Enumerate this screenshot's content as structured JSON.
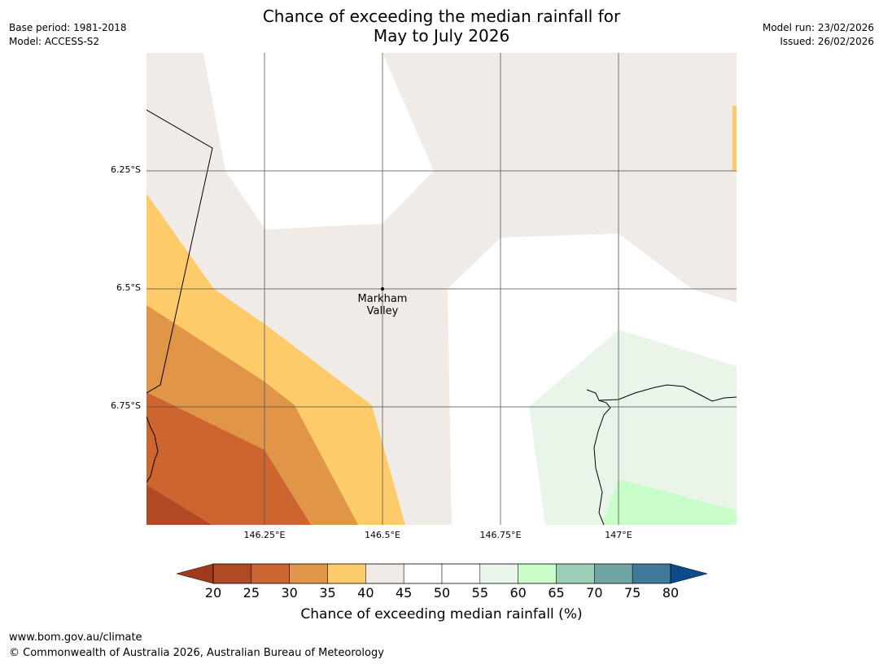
{
  "header": {
    "title_line1": "Chance of exceeding the median rainfall for",
    "title_line2": "May to July 2026",
    "base_period": "Base period: 1981-2018",
    "model": "Model: ACCESS-S2",
    "model_run": "Model run: 23/02/2026",
    "issued": "Issued: 26/02/2026"
  },
  "map": {
    "lat_labels": [
      "6.25°S",
      "6.5°S",
      "6.75°S"
    ],
    "lon_labels": [
      "146.25°E",
      "146.5°E",
      "146.75°E",
      "147°E"
    ],
    "place": {
      "line1": "Markham",
      "line2": "Valley",
      "lon": 146.5,
      "lat": -6.5
    },
    "lon_range": [
      146.0,
      147.25
    ],
    "lat_range": [
      -6.0,
      -7.0
    ]
  },
  "colorbar": {
    "title": "Chance of exceeding median rainfall (%)",
    "ticks": [
      "20",
      "25",
      "30",
      "35",
      "40",
      "45",
      "50",
      "55",
      "60",
      "65",
      "70",
      "75",
      "80"
    ],
    "under_color": "#9e3b1d",
    "over_color": "#0c4a8a",
    "colors": [
      "#b04a25",
      "#cc6530",
      "#e09548",
      "#fecb6a",
      "#f0ebe6",
      "#ffffff",
      "#ffffff",
      "#e9f5e9",
      "#c8fcc8",
      "#9ccfb8",
      "#6fa5a4",
      "#3f7a9a"
    ]
  },
  "footer": {
    "url": "www.bom.gov.au/climate",
    "copyright": "© Commonwealth of Australia 2026, Australian Bureau of Meteorology"
  }
}
